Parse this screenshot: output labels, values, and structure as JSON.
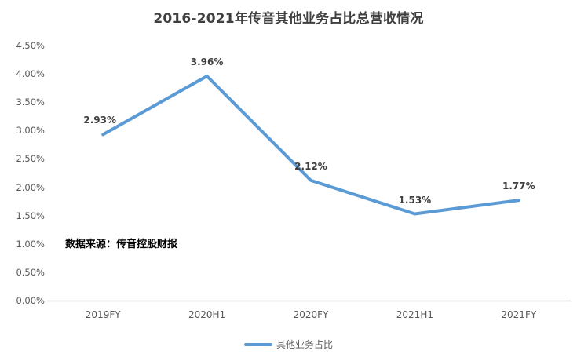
{
  "chart_data": {
    "type": "line",
    "title": "2016-2021年传音其他业务占比总营收情况",
    "categories": [
      "2019FY",
      "2020H1",
      "2020FY",
      "2021H1",
      "2021FY"
    ],
    "series": [
      {
        "name": "其他业务占比",
        "values": [
          2.93,
          3.96,
          2.12,
          1.53,
          1.77
        ],
        "point_labels": [
          "2.93%",
          "3.96%",
          "2.12%",
          "1.53%",
          "1.77%"
        ],
        "color": "#5B9BD5"
      }
    ],
    "xlabel": "",
    "ylabel": "",
    "ylim": [
      0,
      4.5
    ],
    "y_tick_labels": [
      "0.00%",
      "0.50%",
      "1.00%",
      "1.50%",
      "2.00%",
      "2.50%",
      "3.00%",
      "3.50%",
      "4.00%",
      "4.50%"
    ],
    "grid": false,
    "legend_position": "bottom"
  },
  "source_note": "数据来源：传音控股财报",
  "colors": {
    "line": "#5B9BD5",
    "title_text": "#404040",
    "axis_text": "#595959",
    "axis_line": "#D9D9D9",
    "data_label_text": "#3F3F3F",
    "source_text": "#000000"
  }
}
